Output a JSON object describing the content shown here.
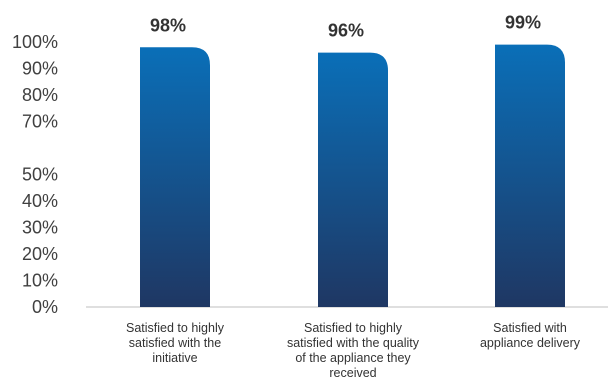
{
  "chart_data": {
    "type": "bar",
    "title": "",
    "xlabel": "",
    "ylabel": "",
    "ylim": [
      0,
      100
    ],
    "y_ticks": [
      {
        "value": 0,
        "label": "0%"
      },
      {
        "value": 10,
        "label": "10%"
      },
      {
        "value": 20,
        "label": "20%"
      },
      {
        "value": 30,
        "label": "30%"
      },
      {
        "value": 40,
        "label": "40%"
      },
      {
        "value": 50,
        "label": "50%"
      },
      {
        "value": 70,
        "label": "70%"
      },
      {
        "value": 80,
        "label": "80%"
      },
      {
        "value": 90,
        "label": "90%"
      },
      {
        "value": 100,
        "label": "100%"
      }
    ],
    "categories": [
      [
        "Satisfied to highly",
        "satisfied with the",
        "initiative"
      ],
      [
        "Satisfied to highly",
        "satisfied with the quality",
        "of the appliance they",
        "received"
      ],
      [
        "Satisfied with",
        "appliance delivery"
      ]
    ],
    "values": [
      98,
      96,
      99
    ],
    "data_labels": [
      "98%",
      "96%",
      "99%"
    ],
    "bar_color_top": "#0a6fb8",
    "bar_color_bottom": "#1f3763",
    "grid": false
  }
}
